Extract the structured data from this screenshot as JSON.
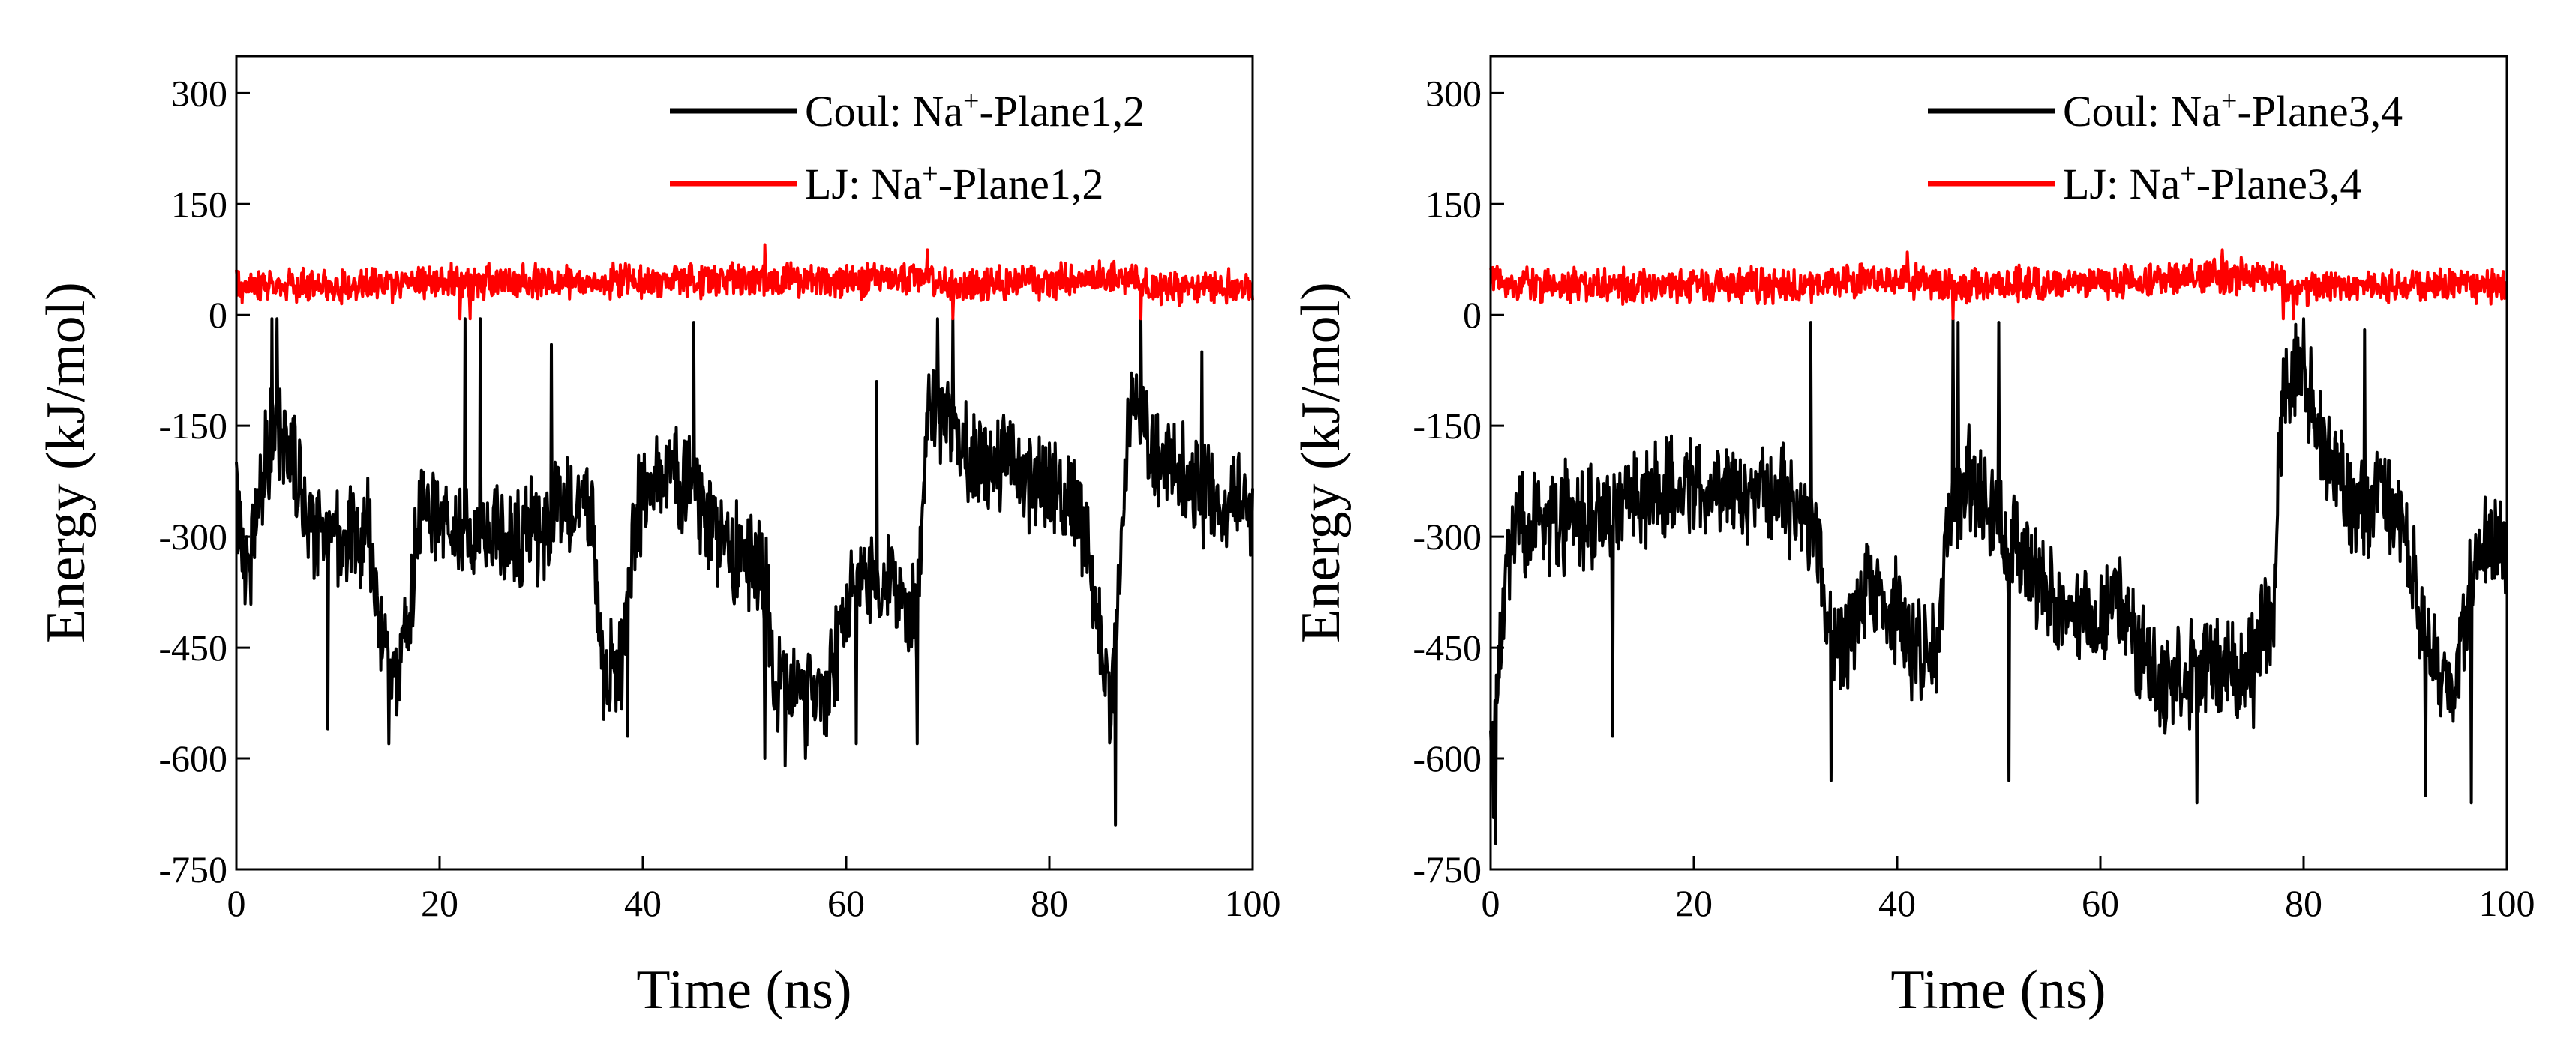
{
  "chart_data": [
    {
      "type": "line",
      "title": "",
      "xlabel": "Time (ns)",
      "ylabel": "Energy (kJ/mol)",
      "xlim": [
        0,
        100
      ],
      "ylim": [
        -750,
        350
      ],
      "xticks": [
        0,
        20,
        40,
        60,
        80,
        100
      ],
      "yticks": [
        300,
        150,
        0,
        -150,
        -300,
        -450,
        -600,
        -750
      ],
      "legend_position": "top-right",
      "series": [
        {
          "name": "Coul",
          "legend_prefix": "Coul: Na",
          "legend_sup": "+",
          "legend_suffix": "-Plane1,2",
          "color": "#000000",
          "noise": 55,
          "keypoints": [
            [
              0,
              -250
            ],
            [
              1,
              -350
            ],
            [
              3,
              -180
            ],
            [
              5,
              -170
            ],
            [
              7,
              -270
            ],
            [
              10,
              -300
            ],
            [
              13,
              -300
            ],
            [
              14,
              -420
            ],
            [
              16,
              -500
            ],
            [
              18,
              -280
            ],
            [
              20,
              -280
            ],
            [
              22,
              -300
            ],
            [
              23,
              -320
            ],
            [
              24,
              -300
            ],
            [
              26,
              -300
            ],
            [
              30,
              -300
            ],
            [
              33,
              -250
            ],
            [
              35,
              -270
            ],
            [
              36,
              -480
            ],
            [
              38,
              -480
            ],
            [
              39,
              -290
            ],
            [
              40,
              -250
            ],
            [
              42,
              -210
            ],
            [
              45,
              -230
            ],
            [
              48,
              -320
            ],
            [
              50,
              -320
            ],
            [
              52,
              -350
            ],
            [
              53,
              -500
            ],
            [
              58,
              -510
            ],
            [
              60,
              -400
            ],
            [
              62,
              -350
            ],
            [
              65,
              -360
            ],
            [
              67,
              -420
            ],
            [
              68,
              -120
            ],
            [
              70,
              -140
            ],
            [
              72,
              -200
            ],
            [
              75,
              -200
            ],
            [
              80,
              -230
            ],
            [
              83,
              -270
            ],
            [
              85,
              -420
            ],
            [
              86,
              -550
            ],
            [
              87,
              -330
            ],
            [
              88,
              -100
            ],
            [
              90,
              -180
            ],
            [
              93,
              -220
            ],
            [
              97,
              -260
            ],
            [
              100,
              -260
            ]
          ],
          "spikes": [
            [
              3.5,
              -5
            ],
            [
              4,
              -5
            ],
            [
              9,
              -560
            ],
            [
              15,
              -580
            ],
            [
              22.5,
              -5
            ],
            [
              24,
              -5
            ],
            [
              31,
              -40
            ],
            [
              38.5,
              -570
            ],
            [
              45,
              -10
            ],
            [
              52,
              -600
            ],
            [
              54,
              -610
            ],
            [
              56,
              -600
            ],
            [
              61,
              -580
            ],
            [
              63,
              -90
            ],
            [
              67,
              -580
            ],
            [
              69,
              -5
            ],
            [
              70.5,
              -5
            ],
            [
              86.5,
              -690
            ],
            [
              89,
              -5
            ],
            [
              95,
              -50
            ]
          ]
        },
        {
          "name": "LJ",
          "legend_prefix": "LJ: Na",
          "legend_sup": "+",
          "legend_suffix": "-Plane1,2",
          "color": "#ff0000",
          "noise": 18,
          "keypoints": [
            [
              0,
              40
            ],
            [
              10,
              40
            ],
            [
              20,
              45
            ],
            [
              30,
              45
            ],
            [
              40,
              45
            ],
            [
              50,
              50
            ],
            [
              60,
              45
            ],
            [
              67,
              55
            ],
            [
              70,
              40
            ],
            [
              80,
              45
            ],
            [
              88,
              50
            ],
            [
              90,
              35
            ],
            [
              100,
              40
            ]
          ],
          "spikes": [
            [
              52,
              95
            ],
            [
              68,
              88
            ],
            [
              22,
              -5
            ],
            [
              23,
              -5
            ],
            [
              70.5,
              -5
            ],
            [
              89,
              -5
            ]
          ]
        }
      ]
    },
    {
      "type": "line",
      "title": "",
      "xlabel": "Time (ns)",
      "ylabel": "Energy (kJ/mol)",
      "xlim": [
        0,
        100
      ],
      "ylim": [
        -750,
        350
      ],
      "xticks": [
        0,
        20,
        40,
        60,
        80,
        100
      ],
      "yticks": [
        300,
        150,
        0,
        -150,
        -300,
        -450,
        -600,
        -750
      ],
      "legend_position": "top-right",
      "series": [
        {
          "name": "Coul",
          "legend_prefix": "Coul: Na",
          "legend_sup": "+",
          "legend_suffix": "-Plane3,4",
          "color": "#000000",
          "noise": 55,
          "keypoints": [
            [
              0,
              -600
            ],
            [
              1,
              -450
            ],
            [
              2,
              -300
            ],
            [
              5,
              -280
            ],
            [
              10,
              -270
            ],
            [
              15,
              -240
            ],
            [
              20,
              -230
            ],
            [
              25,
              -230
            ],
            [
              30,
              -260
            ],
            [
              32,
              -300
            ],
            [
              33,
              -420
            ],
            [
              35,
              -450
            ],
            [
              37,
              -380
            ],
            [
              40,
              -400
            ],
            [
              42,
              -460
            ],
            [
              44,
              -460
            ],
            [
              45,
              -280
            ],
            [
              47,
              -220
            ],
            [
              50,
              -300
            ],
            [
              52,
              -320
            ],
            [
              54,
              -360
            ],
            [
              56,
              -400
            ],
            [
              58,
              -410
            ],
            [
              60,
              -420
            ],
            [
              62,
              -390
            ],
            [
              64,
              -470
            ],
            [
              66,
              -500
            ],
            [
              70,
              -480
            ],
            [
              75,
              -480
            ],
            [
              77,
              -400
            ],
            [
              78,
              -80
            ],
            [
              80,
              -90
            ],
            [
              82,
              -180
            ],
            [
              85,
              -260
            ],
            [
              88,
              -250
            ],
            [
              90,
              -290
            ],
            [
              92,
              -440
            ],
            [
              95,
              -500
            ],
            [
              97,
              -320
            ],
            [
              100,
              -300
            ]
          ],
          "spikes": [
            [
              0.5,
              -715
            ],
            [
              0.3,
              -680
            ],
            [
              12,
              -570
            ],
            [
              31.5,
              -10
            ],
            [
              33.5,
              -630
            ],
            [
              45.5,
              -5
            ],
            [
              46,
              -10
            ],
            [
              50,
              -10
            ],
            [
              51,
              -630
            ],
            [
              69.5,
              -660
            ],
            [
              80,
              -5
            ],
            [
              86,
              -20
            ],
            [
              92,
              -650
            ],
            [
              96.5,
              -660
            ]
          ]
        },
        {
          "name": "LJ",
          "legend_prefix": "LJ: Na",
          "legend_sup": "+",
          "legend_suffix": "-Plane3,4",
          "color": "#ff0000",
          "noise": 18,
          "keypoints": [
            [
              0,
              45
            ],
            [
              10,
              40
            ],
            [
              20,
              40
            ],
            [
              30,
              40
            ],
            [
              40,
              48
            ],
            [
              45,
              40
            ],
            [
              50,
              40
            ],
            [
              60,
              45
            ],
            [
              70,
              50
            ],
            [
              77,
              55
            ],
            [
              79,
              30
            ],
            [
              82,
              40
            ],
            [
              90,
              40
            ],
            [
              100,
              40
            ]
          ],
          "spikes": [
            [
              41,
              85
            ],
            [
              72,
              88
            ],
            [
              45.5,
              -5
            ],
            [
              78,
              -5
            ],
            [
              79,
              -5
            ]
          ]
        }
      ]
    }
  ]
}
